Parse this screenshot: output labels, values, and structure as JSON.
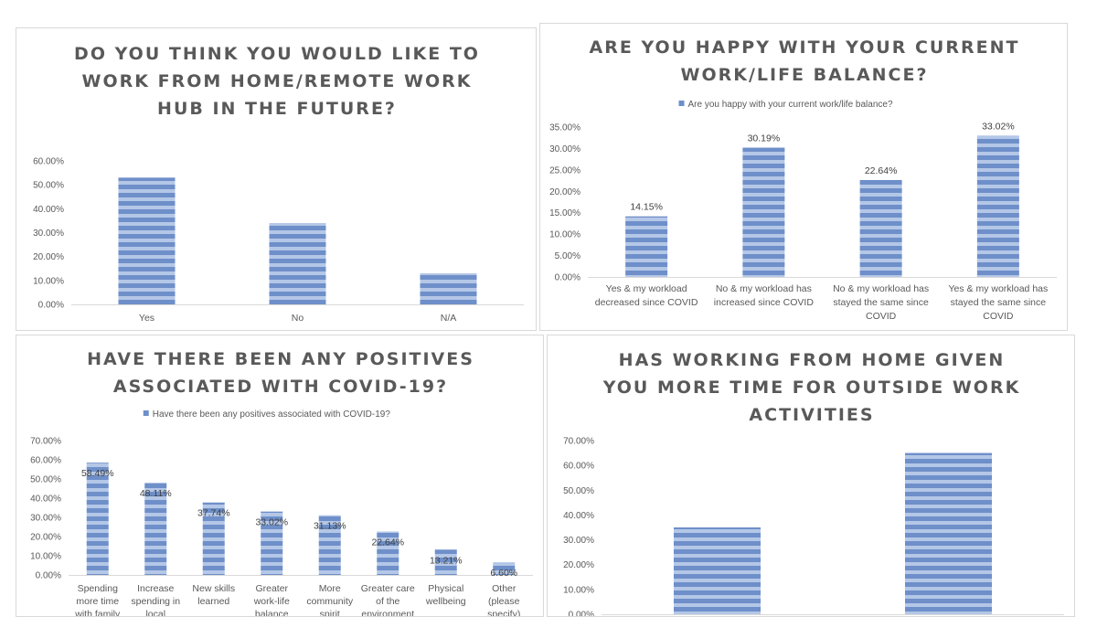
{
  "chart_data": [
    {
      "id": "p1",
      "type": "bar",
      "title_lines": [
        "DO YOU THINK YOU WOULD LIKE TO",
        "WORK FROM HOME/REMOTE WORK",
        "HUB IN THE FUTURE?"
      ],
      "legend": "",
      "categories": [
        [
          "Yes"
        ],
        [
          "No"
        ],
        [
          "N/A"
        ]
      ],
      "values": [
        53,
        34,
        13
      ],
      "data_labels": [],
      "yticks": [
        "0.00%",
        "10.00%",
        "20.00%",
        "30.00%",
        "40.00%",
        "50.00%",
        "60.00%"
      ],
      "ylim": [
        0,
        60
      ],
      "bar_color": "#7f9fd3"
    },
    {
      "id": "p2",
      "type": "bar",
      "title_lines": [
        "ARE YOU HAPPY WITH YOUR CURRENT",
        "WORK/LIFE BALANCE?"
      ],
      "legend": "Are you happy with your current work/life balance?",
      "categories": [
        [
          "Yes & my workload",
          "decreased since COVID"
        ],
        [
          "No & my workload has",
          "increased since COVID"
        ],
        [
          "No & my workload has",
          "stayed the same since",
          "COVID"
        ],
        [
          "Yes & my workload has",
          "stayed the same since",
          "COVID"
        ]
      ],
      "values": [
        14.15,
        30.19,
        22.64,
        33.02
      ],
      "data_labels": [
        "14.15%",
        "30.19%",
        "22.64%",
        "33.02%"
      ],
      "yticks": [
        "0.00%",
        "5.00%",
        "10.00%",
        "15.00%",
        "20.00%",
        "25.00%",
        "30.00%",
        "35.00%"
      ],
      "ylim": [
        0,
        35
      ],
      "bar_color": "#7f9fd3"
    },
    {
      "id": "p3",
      "type": "bar",
      "title_lines": [
        "HAVE THERE BEEN ANY POSITIVES",
        "ASSOCIATED WITH COVID-19?"
      ],
      "legend": "Have there been any positives associated with COVID-19?",
      "categories": [
        [
          "Spending",
          "more time",
          "with family"
        ],
        [
          "Increase",
          "spending in",
          "local"
        ],
        [
          "New skills",
          "learned"
        ],
        [
          "Greater",
          "work-life",
          "balance"
        ],
        [
          "More",
          "community",
          "spirit"
        ],
        [
          "Greater care",
          "of the",
          "environment"
        ],
        [
          "Physical",
          "wellbeing"
        ],
        [
          "Other",
          "(please",
          "specify)"
        ]
      ],
      "values": [
        58.49,
        48.11,
        37.74,
        33.02,
        31.13,
        22.64,
        13.21,
        6.6
      ],
      "data_labels": [
        "58.49%",
        "48.11%",
        "37.74%",
        "33.02%",
        "31.13%",
        "22.64%",
        "13.21%",
        "6.60%"
      ],
      "yticks": [
        "0.00%",
        "10.00%",
        "20.00%",
        "30.00%",
        "40.00%",
        "50.00%",
        "60.00%",
        "70.00%"
      ],
      "ylim": [
        0,
        70
      ],
      "bar_color": "#7f9fd3"
    },
    {
      "id": "p4",
      "type": "bar",
      "title_lines": [
        "HAS WORKING FROM HOME GIVEN",
        "YOU MORE TIME FOR OUTSIDE WORK",
        "ACTIVITIES"
      ],
      "legend": "",
      "categories": [
        [
          ""
        ],
        [
          ""
        ]
      ],
      "values": [
        35,
        65
      ],
      "data_labels": [],
      "yticks": [
        "0.00%",
        "10.00%",
        "20.00%",
        "30.00%",
        "40.00%",
        "50.00%",
        "60.00%",
        "70.00%"
      ],
      "ylim": [
        0,
        70
      ],
      "bar_color": "#7f9fd3"
    }
  ]
}
